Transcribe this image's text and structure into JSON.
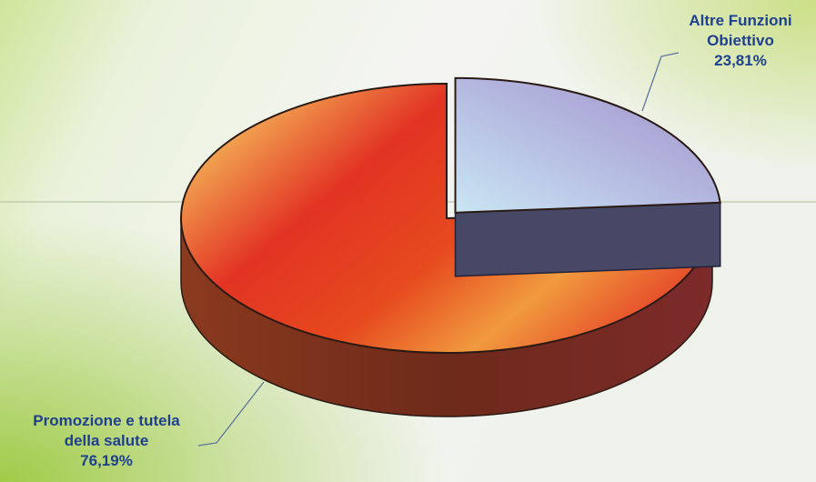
{
  "chart_data": {
    "type": "pie",
    "style": "3d-exploded",
    "slices": [
      {
        "name_lines": [
          "Altre Funzioni",
          "Obiettivo"
        ],
        "value_label": "23,81%",
        "value": 23.81,
        "colors": [
          "#c9e6f3",
          "#9f90c6",
          "#4a4a6a"
        ]
      },
      {
        "name_lines": [
          "Promozione e tutela",
          "della salute"
        ],
        "value_label": "76,19%",
        "value": 76.19,
        "colors": [
          "#f6c35e",
          "#e23323",
          "#8a3a1e"
        ]
      }
    ],
    "legend": "none",
    "background": {
      "top": "#f3f5f1",
      "left": "#a8d04a"
    },
    "label_color": "#1f3f8f"
  }
}
